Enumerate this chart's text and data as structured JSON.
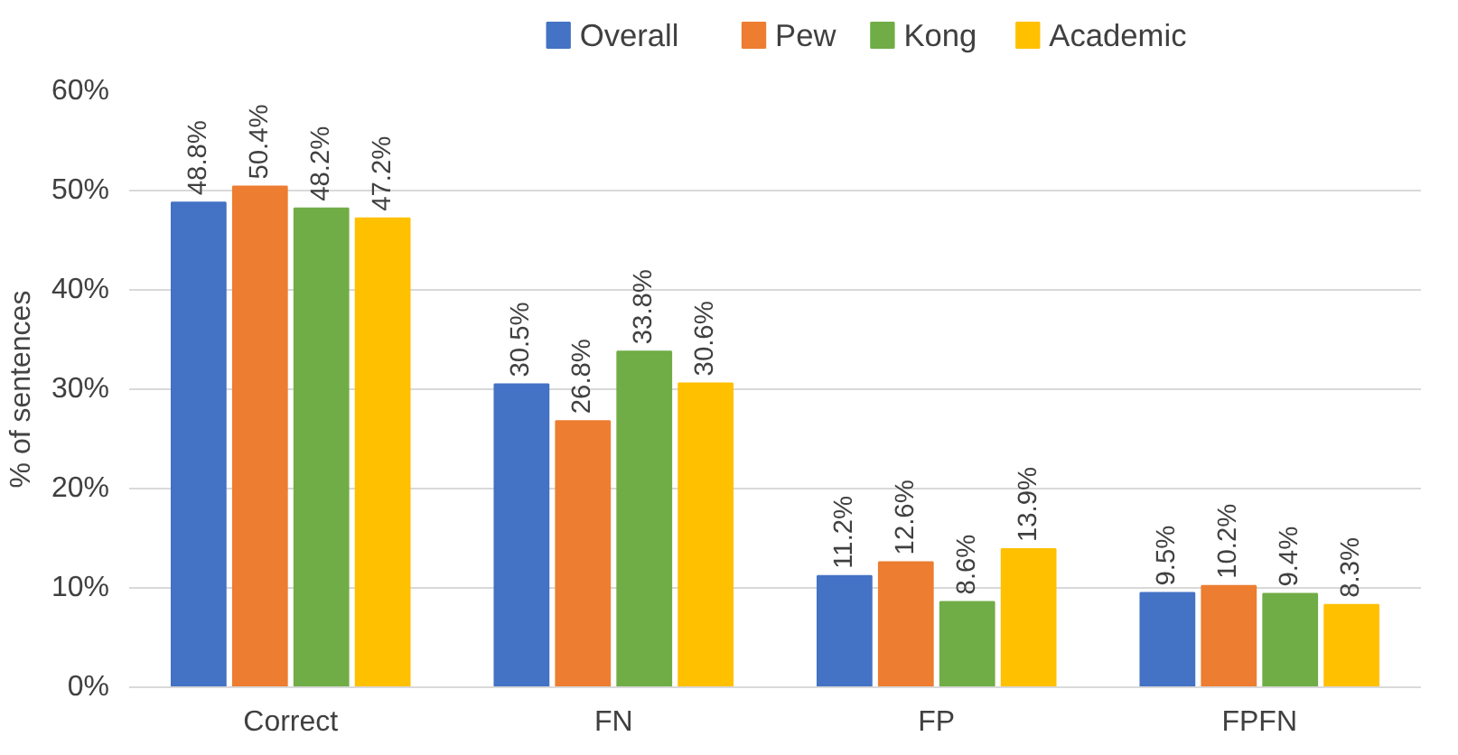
{
  "chart_data": {
    "type": "bar",
    "ylabel": "% of sentences",
    "categories": [
      "Correct",
      "FN",
      "FP",
      "FPFN"
    ],
    "series": [
      {
        "name": "Overall",
        "color": "#4472c4",
        "values": [
          48.8,
          30.5,
          11.2,
          9.5
        ],
        "value_labels": [
          "48.8%",
          "30.5%",
          "11.2%",
          "9.5%"
        ]
      },
      {
        "name": "Pew",
        "color": "#ed7d31",
        "values": [
          50.4,
          26.8,
          12.6,
          10.2
        ],
        "value_labels": [
          "50.4%",
          "26.8%",
          "12.6%",
          "10.2%"
        ]
      },
      {
        "name": "Kong",
        "color": "#70ad47",
        "values": [
          48.2,
          33.8,
          8.6,
          9.4
        ],
        "value_labels": [
          "48.2%",
          "33.8%",
          "8.6%",
          "9.4%"
        ]
      },
      {
        "name": "Academic",
        "color": "#ffc000",
        "values": [
          47.2,
          30.6,
          13.9,
          8.3
        ],
        "value_labels": [
          "47.2%",
          "30.6%",
          "13.9%",
          "8.3%"
        ]
      }
    ],
    "ylim": [
      0,
      60
    ],
    "yticks": [
      {
        "value": 0,
        "label": "0%"
      },
      {
        "value": 10,
        "label": "10%"
      },
      {
        "value": 20,
        "label": "20%"
      },
      {
        "value": 30,
        "label": "30%"
      },
      {
        "value": 40,
        "label": "40%"
      },
      {
        "value": 50,
        "label": "50%"
      },
      {
        "value": 60,
        "label": "60%"
      }
    ],
    "grid": "y",
    "legend": "top"
  }
}
